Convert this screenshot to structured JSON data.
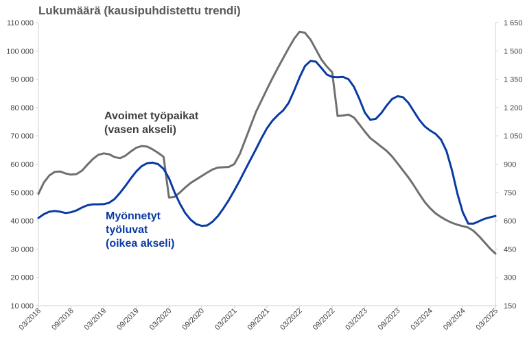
{
  "chart_data": {
    "type": "line",
    "title": "Lukumäärä (kausipuhdistettu trendi)",
    "x_labels": [
      "03/2018",
      "09/2018",
      "03/2019",
      "09/2019",
      "03/2020",
      "09/2020",
      "03/2021",
      "09/2021",
      "03/2022",
      "09/2022",
      "03/2023",
      "09/2023",
      "03/2024",
      "09/2024",
      "03/2025"
    ],
    "x_range": [
      2018.0,
      2025.0
    ],
    "y_left": {
      "min": 10000,
      "max": 110000,
      "ticks": [
        10000,
        20000,
        30000,
        40000,
        50000,
        60000,
        70000,
        80000,
        90000,
        100000,
        110000
      ],
      "tick_labels": [
        "10 000",
        "20 000",
        "30 000",
        "40 000",
        "50 000",
        "60 000",
        "70 000",
        "80 000",
        "90 000",
        "100 000",
        "110 000"
      ]
    },
    "y_right": {
      "min": 150,
      "max": 1650,
      "ticks": [
        150,
        300,
        450,
        600,
        750,
        900,
        1050,
        1200,
        1350,
        1500,
        1650
      ],
      "tick_labels": [
        "150",
        "300",
        "450",
        "600",
        "750",
        "900",
        "1 050",
        "1 200",
        "1 350",
        "1 500",
        "1 650"
      ]
    },
    "grid": false,
    "series": [
      {
        "name": "Avoimet työpaikat",
        "annotation": [
          "Avoimet työpaikat",
          "(vasen akseli)"
        ],
        "axis": "left",
        "color": "#6d706f",
        "points": [
          [
            2018.0,
            49500
          ],
          [
            2018.083,
            53500
          ],
          [
            2018.167,
            56000
          ],
          [
            2018.25,
            57300
          ],
          [
            2018.333,
            57400
          ],
          [
            2018.417,
            56700
          ],
          [
            2018.5,
            56300
          ],
          [
            2018.583,
            56500
          ],
          [
            2018.667,
            57700
          ],
          [
            2018.75,
            59800
          ],
          [
            2018.833,
            61800
          ],
          [
            2018.917,
            63300
          ],
          [
            2019.0,
            63800
          ],
          [
            2019.083,
            63500
          ],
          [
            2019.167,
            62500
          ],
          [
            2019.25,
            62100
          ],
          [
            2019.333,
            63000
          ],
          [
            2019.417,
            64500
          ],
          [
            2019.5,
            65800
          ],
          [
            2019.583,
            66400
          ],
          [
            2019.667,
            66200
          ],
          [
            2019.75,
            65200
          ],
          [
            2019.833,
            64000
          ],
          [
            2019.917,
            62600
          ],
          [
            2020.0,
            48200
          ],
          [
            2020.083,
            48400
          ],
          [
            2020.167,
            50000
          ],
          [
            2020.25,
            51800
          ],
          [
            2020.333,
            53400
          ],
          [
            2020.417,
            54600
          ],
          [
            2020.5,
            55800
          ],
          [
            2020.583,
            57000
          ],
          [
            2020.667,
            58100
          ],
          [
            2020.75,
            58800
          ],
          [
            2020.833,
            58900
          ],
          [
            2020.917,
            59000
          ],
          [
            2021.0,
            60000
          ],
          [
            2021.083,
            63500
          ],
          [
            2021.167,
            68500
          ],
          [
            2021.25,
            73500
          ],
          [
            2021.333,
            78500
          ],
          [
            2021.417,
            82500
          ],
          [
            2021.5,
            86500
          ],
          [
            2021.583,
            90300
          ],
          [
            2021.667,
            94000
          ],
          [
            2021.75,
            97500
          ],
          [
            2021.833,
            101000
          ],
          [
            2021.917,
            104300
          ],
          [
            2022.0,
            106800
          ],
          [
            2022.083,
            106400
          ],
          [
            2022.167,
            104000
          ],
          [
            2022.25,
            100500
          ],
          [
            2022.333,
            97000
          ],
          [
            2022.417,
            94500
          ],
          [
            2022.5,
            92500
          ],
          [
            2022.583,
            77000
          ],
          [
            2022.667,
            77200
          ],
          [
            2022.75,
            77500
          ],
          [
            2022.833,
            76500
          ],
          [
            2022.917,
            74000
          ],
          [
            2023.0,
            71500
          ],
          [
            2023.083,
            69200
          ],
          [
            2023.167,
            67700
          ],
          [
            2023.25,
            66200
          ],
          [
            2023.333,
            64700
          ],
          [
            2023.417,
            62700
          ],
          [
            2023.5,
            60300
          ],
          [
            2023.583,
            57800
          ],
          [
            2023.667,
            55300
          ],
          [
            2023.75,
            52500
          ],
          [
            2023.833,
            49500
          ],
          [
            2023.917,
            46600
          ],
          [
            2024.0,
            44400
          ],
          [
            2024.083,
            42600
          ],
          [
            2024.167,
            41300
          ],
          [
            2024.25,
            40200
          ],
          [
            2024.333,
            39300
          ],
          [
            2024.417,
            38600
          ],
          [
            2024.5,
            38100
          ],
          [
            2024.583,
            37600
          ],
          [
            2024.667,
            36400
          ],
          [
            2024.75,
            34500
          ],
          [
            2024.833,
            32400
          ],
          [
            2024.917,
            30200
          ],
          [
            2025.0,
            28400
          ]
        ]
      },
      {
        "name": "Myönnetyt työluvat",
        "annotation": [
          "Myönnetyt",
          "työluvat",
          "(oikea akseli)"
        ],
        "axis": "right",
        "color": "#0a3aa3",
        "points": [
          [
            2018.0,
            615
          ],
          [
            2018.083,
            635
          ],
          [
            2018.167,
            648
          ],
          [
            2018.25,
            652
          ],
          [
            2018.333,
            648
          ],
          [
            2018.417,
            641
          ],
          [
            2018.5,
            645
          ],
          [
            2018.583,
            655
          ],
          [
            2018.667,
            670
          ],
          [
            2018.75,
            682
          ],
          [
            2018.833,
            687
          ],
          [
            2018.917,
            687
          ],
          [
            2019.0,
            688
          ],
          [
            2019.083,
            695
          ],
          [
            2019.167,
            715
          ],
          [
            2019.25,
            748
          ],
          [
            2019.333,
            785
          ],
          [
            2019.417,
            825
          ],
          [
            2019.5,
            862
          ],
          [
            2019.583,
            890
          ],
          [
            2019.667,
            905
          ],
          [
            2019.75,
            908
          ],
          [
            2019.833,
            900
          ],
          [
            2019.917,
            875
          ],
          [
            2020.0,
            825
          ],
          [
            2020.083,
            752
          ],
          [
            2020.167,
            690
          ],
          [
            2020.25,
            640
          ],
          [
            2020.333,
            605
          ],
          [
            2020.417,
            582
          ],
          [
            2020.5,
            573
          ],
          [
            2020.583,
            575
          ],
          [
            2020.667,
            595
          ],
          [
            2020.75,
            625
          ],
          [
            2020.833,
            665
          ],
          [
            2020.917,
            710
          ],
          [
            2021.0,
            760
          ],
          [
            2021.083,
            813
          ],
          [
            2021.167,
            870
          ],
          [
            2021.25,
            925
          ],
          [
            2021.333,
            980
          ],
          [
            2021.417,
            1038
          ],
          [
            2021.5,
            1090
          ],
          [
            2021.583,
            1130
          ],
          [
            2021.667,
            1160
          ],
          [
            2021.75,
            1185
          ],
          [
            2021.833,
            1225
          ],
          [
            2021.917,
            1290
          ],
          [
            2022.0,
            1360
          ],
          [
            2022.083,
            1420
          ],
          [
            2022.167,
            1447
          ],
          [
            2022.25,
            1443
          ],
          [
            2022.333,
            1410
          ],
          [
            2022.417,
            1375
          ],
          [
            2022.5,
            1362
          ],
          [
            2022.583,
            1360
          ],
          [
            2022.667,
            1362
          ],
          [
            2022.75,
            1350
          ],
          [
            2022.833,
            1310
          ],
          [
            2022.917,
            1245
          ],
          [
            2023.0,
            1173
          ],
          [
            2023.083,
            1135
          ],
          [
            2023.167,
            1140
          ],
          [
            2023.25,
            1170
          ],
          [
            2023.333,
            1210
          ],
          [
            2023.417,
            1245
          ],
          [
            2023.5,
            1260
          ],
          [
            2023.583,
            1255
          ],
          [
            2023.667,
            1225
          ],
          [
            2023.75,
            1180
          ],
          [
            2023.833,
            1135
          ],
          [
            2023.917,
            1100
          ],
          [
            2024.0,
            1078
          ],
          [
            2024.083,
            1060
          ],
          [
            2024.167,
            1030
          ],
          [
            2024.25,
            970
          ],
          [
            2024.333,
            870
          ],
          [
            2024.417,
            745
          ],
          [
            2024.5,
            645
          ],
          [
            2024.583,
            585
          ],
          [
            2024.667,
            585
          ],
          [
            2024.75,
            598
          ],
          [
            2024.833,
            610
          ],
          [
            2024.917,
            618
          ],
          [
            2025.0,
            625
          ]
        ]
      }
    ]
  }
}
